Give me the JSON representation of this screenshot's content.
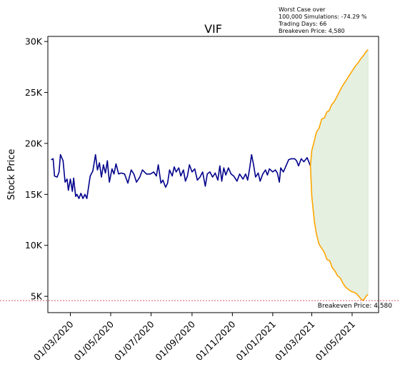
{
  "chart_data": {
    "type": "line",
    "title": "VIF",
    "xlabel": "",
    "ylabel": "Stock Price",
    "xlim": [
      "2020-01-27",
      "2021-06-10"
    ],
    "ylim": [
      3400,
      30500
    ],
    "yticks": [
      5000,
      10000,
      15000,
      20000,
      25000,
      30000
    ],
    "ytick_labels": [
      "5K",
      "10K",
      "15K",
      "20K",
      "25K",
      "30K"
    ],
    "xticks": [
      "2020-03-01",
      "2020-05-01",
      "2020-07-01",
      "2020-09-01",
      "2020-11-01",
      "2021-01-01",
      "2021-03-01",
      "2021-05-01"
    ],
    "xtick_labels": [
      "01/03/2020",
      "01/05/2020",
      "01/07/2020",
      "01/09/2020",
      "01/11/2020",
      "01/01/2021",
      "01/03/2021",
      "01/05/2021"
    ],
    "grid": false,
    "annotation_lines": [
      "Worst Case over",
      "100,000 Simulations: -74.29 %",
      "Trading Days: 66",
      "Breakeven Price: 4,580"
    ],
    "breakeven": {
      "value": 4580,
      "label": "Breakeven Price: 4,580",
      "color": "#d62728"
    },
    "colors": {
      "historical": "#00008b",
      "simulation": "#ffa500",
      "fill": "#e5f0e0"
    },
    "historical": [
      [
        "2020-02-01",
        18400
      ],
      [
        "2020-02-04",
        18500
      ],
      [
        "2020-02-06",
        16800
      ],
      [
        "2020-02-10",
        16700
      ],
      [
        "2020-02-13",
        17200
      ],
      [
        "2020-02-15",
        18900
      ],
      [
        "2020-02-19",
        18300
      ],
      [
        "2020-02-22",
        16200
      ],
      [
        "2020-02-25",
        16500
      ],
      [
        "2020-02-27",
        15400
      ],
      [
        "2020-03-01",
        16500
      ],
      [
        "2020-03-04",
        15300
      ],
      [
        "2020-03-06",
        16600
      ],
      [
        "2020-03-09",
        14800
      ],
      [
        "2020-03-11",
        15000
      ],
      [
        "2020-03-14",
        14600
      ],
      [
        "2020-03-17",
        15100
      ],
      [
        "2020-03-20",
        14600
      ],
      [
        "2020-03-23",
        15000
      ],
      [
        "2020-03-26",
        14600
      ],
      [
        "2020-03-28",
        15500
      ],
      [
        "2020-03-31",
        16800
      ],
      [
        "2020-04-04",
        17300
      ],
      [
        "2020-04-08",
        18900
      ],
      [
        "2020-04-11",
        17400
      ],
      [
        "2020-04-14",
        18100
      ],
      [
        "2020-04-17",
        16700
      ],
      [
        "2020-04-20",
        17900
      ],
      [
        "2020-04-23",
        17100
      ],
      [
        "2020-04-26",
        18300
      ],
      [
        "2020-04-29",
        16200
      ],
      [
        "2020-05-03",
        17500
      ],
      [
        "2020-05-06",
        17000
      ],
      [
        "2020-05-09",
        18000
      ],
      [
        "2020-05-13",
        17000
      ],
      [
        "2020-05-17",
        17100
      ],
      [
        "2020-05-22",
        17000
      ],
      [
        "2020-05-27",
        16100
      ],
      [
        "2020-06-01",
        17400
      ],
      [
        "2020-06-05",
        17000
      ],
      [
        "2020-06-09",
        16200
      ],
      [
        "2020-06-14",
        16700
      ],
      [
        "2020-06-18",
        17400
      ],
      [
        "2020-06-24",
        17000
      ],
      [
        "2020-06-30",
        17000
      ],
      [
        "2020-07-05",
        17200
      ],
      [
        "2020-07-09",
        16800
      ],
      [
        "2020-07-12",
        17900
      ],
      [
        "2020-07-16",
        16100
      ],
      [
        "2020-07-19",
        16400
      ],
      [
        "2020-07-23",
        15700
      ],
      [
        "2020-07-26",
        16100
      ],
      [
        "2020-07-29",
        17400
      ],
      [
        "2020-08-02",
        16800
      ],
      [
        "2020-08-05",
        17700
      ],
      [
        "2020-08-08",
        17200
      ],
      [
        "2020-08-12",
        17600
      ],
      [
        "2020-08-15",
        16800
      ],
      [
        "2020-08-19",
        17400
      ],
      [
        "2020-08-22",
        16300
      ],
      [
        "2020-08-25",
        16800
      ],
      [
        "2020-08-28",
        17900
      ],
      [
        "2020-09-01",
        17200
      ],
      [
        "2020-09-05",
        17500
      ],
      [
        "2020-09-09",
        16400
      ],
      [
        "2020-09-13",
        16700
      ],
      [
        "2020-09-17",
        17200
      ],
      [
        "2020-09-21",
        15800
      ],
      [
        "2020-09-24",
        17000
      ],
      [
        "2020-09-28",
        17200
      ],
      [
        "2020-10-02",
        16700
      ],
      [
        "2020-10-06",
        17100
      ],
      [
        "2020-10-10",
        16400
      ],
      [
        "2020-10-13",
        17800
      ],
      [
        "2020-10-16",
        16300
      ],
      [
        "2020-10-19",
        17600
      ],
      [
        "2020-10-22",
        16900
      ],
      [
        "2020-10-26",
        17600
      ],
      [
        "2020-10-30",
        17000
      ],
      [
        "2020-11-03",
        16800
      ],
      [
        "2020-11-08",
        16300
      ],
      [
        "2020-11-12",
        17000
      ],
      [
        "2020-11-17",
        16500
      ],
      [
        "2020-11-21",
        17000
      ],
      [
        "2020-11-24",
        16400
      ],
      [
        "2020-11-27",
        17500
      ],
      [
        "2020-11-30",
        18900
      ],
      [
        "2020-12-03",
        17900
      ],
      [
        "2020-12-06",
        16700
      ],
      [
        "2020-12-10",
        17100
      ],
      [
        "2020-12-13",
        16300
      ],
      [
        "2020-12-17",
        17000
      ],
      [
        "2020-12-21",
        17400
      ],
      [
        "2020-12-24",
        16900
      ],
      [
        "2020-12-27",
        17500
      ],
      [
        "2021-01-01",
        17200
      ],
      [
        "2021-01-05",
        17400
      ],
      [
        "2021-01-08",
        17100
      ],
      [
        "2021-01-11",
        16200
      ],
      [
        "2021-01-13",
        17600
      ],
      [
        "2021-01-17",
        17200
      ],
      [
        "2021-01-21",
        17800
      ],
      [
        "2021-01-25",
        18400
      ],
      [
        "2021-01-29",
        18500
      ],
      [
        "2021-02-03",
        18500
      ],
      [
        "2021-02-06",
        18300
      ],
      [
        "2021-02-09",
        17800
      ],
      [
        "2021-02-13",
        18500
      ],
      [
        "2021-02-17",
        18200
      ],
      [
        "2021-02-22",
        18600
      ],
      [
        "2021-02-27",
        17800
      ]
    ],
    "simulation": {
      "start": [
        "2021-02-27",
        17800
      ],
      "best_case": [
        [
          "2021-03-01",
          19300
        ],
        [
          "2021-03-05",
          20300
        ],
        [
          "2021-03-08",
          21100
        ],
        [
          "2021-03-12",
          21500
        ],
        [
          "2021-03-16",
          22400
        ],
        [
          "2021-03-20",
          22500
        ],
        [
          "2021-03-24",
          23100
        ],
        [
          "2021-03-27",
          23200
        ],
        [
          "2021-03-31",
          23800
        ],
        [
          "2021-04-04",
          24100
        ],
        [
          "2021-04-08",
          24600
        ],
        [
          "2021-04-12",
          25100
        ],
        [
          "2021-04-16",
          25600
        ],
        [
          "2021-04-20",
          26000
        ],
        [
          "2021-04-24",
          26400
        ],
        [
          "2021-04-28",
          26800
        ],
        [
          "2021-05-02",
          27200
        ],
        [
          "2021-05-06",
          27600
        ],
        [
          "2021-05-10",
          27900
        ],
        [
          "2021-05-14",
          28300
        ],
        [
          "2021-05-18",
          28600
        ],
        [
          "2021-05-22",
          29000
        ],
        [
          "2021-05-25",
          29200
        ]
      ],
      "worst_case": [
        [
          "2021-03-01",
          14800
        ],
        [
          "2021-03-05",
          12300
        ],
        [
          "2021-03-08",
          11100
        ],
        [
          "2021-03-12",
          10100
        ],
        [
          "2021-03-16",
          9700
        ],
        [
          "2021-03-20",
          9300
        ],
        [
          "2021-03-24",
          8600
        ],
        [
          "2021-03-28",
          8500
        ],
        [
          "2021-04-01",
          7800
        ],
        [
          "2021-04-05",
          7500
        ],
        [
          "2021-04-09",
          7000
        ],
        [
          "2021-04-13",
          6800
        ],
        [
          "2021-04-17",
          6300
        ],
        [
          "2021-04-21",
          5900
        ],
        [
          "2021-04-25",
          5700
        ],
        [
          "2021-04-29",
          5500
        ],
        [
          "2021-05-03",
          5400
        ],
        [
          "2021-05-07",
          5300
        ],
        [
          "2021-05-11",
          5000
        ],
        [
          "2021-05-15",
          4700
        ],
        [
          "2021-05-18",
          4600
        ],
        [
          "2021-05-22",
          5000
        ],
        [
          "2021-05-25",
          5200
        ]
      ]
    }
  }
}
